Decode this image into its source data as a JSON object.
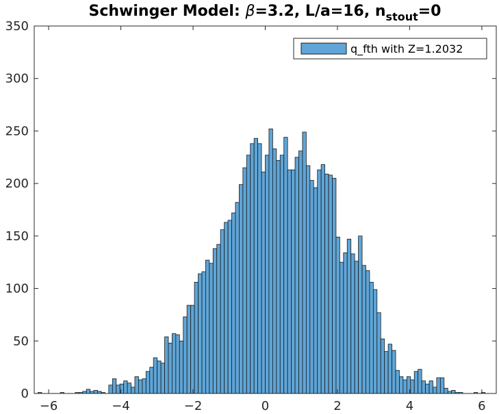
{
  "chart_data": {
    "type": "bar",
    "title": {
      "prefix": "Schwinger Model: ",
      "beta_symbol": "β",
      "mid": "=3.2, L/a=16, n",
      "subscript": "stout",
      "suffix": "=0"
    },
    "xlabel": "",
    "ylabel": "",
    "xlim": [
      -6.4,
      6.4
    ],
    "ylim": [
      0,
      350
    ],
    "x_ticks": [
      -6,
      -4,
      -2,
      0,
      2,
      4,
      6
    ],
    "y_ticks": [
      0,
      50,
      100,
      150,
      200,
      250,
      300,
      350
    ],
    "bin_edges": [
      -6.4,
      6.4
    ],
    "series": [
      {
        "name": "q_fth with Z=1.2032",
        "values": [
          0,
          1,
          0,
          0,
          0,
          0,
          0,
          1,
          0,
          0,
          0,
          1,
          1,
          2,
          4,
          2,
          3,
          2,
          1,
          0,
          8,
          14,
          8,
          9,
          12,
          10,
          6,
          16,
          13,
          14,
          21,
          25,
          34,
          31,
          29,
          54,
          48,
          57,
          56,
          50,
          73,
          84,
          84,
          106,
          114,
          116,
          127,
          124,
          138,
          142,
          156,
          163,
          165,
          172,
          182,
          199,
          215,
          227,
          238,
          243,
          238,
          211,
          227,
          252,
          233,
          222,
          227,
          244,
          213,
          213,
          225,
          231,
          249,
          217,
          203,
          196,
          213,
          218,
          209,
          208,
          205,
          149,
          125,
          134,
          147,
          133,
          126,
          150,
          122,
          117,
          106,
          99,
          77,
          52,
          40,
          47,
          41,
          22,
          16,
          13,
          16,
          13,
          21,
          23,
          12,
          9,
          12,
          6,
          15,
          15,
          5,
          2,
          3,
          1,
          1,
          0,
          0,
          0,
          1,
          0,
          1,
          0,
          0,
          0
        ]
      }
    ],
    "grid": false,
    "legend_position": "top-right",
    "colors": {
      "bar_fill": "#5fa5d7",
      "bar_edge": "#1a1a1a",
      "axis": "#262626",
      "background": "#ffffff"
    }
  }
}
